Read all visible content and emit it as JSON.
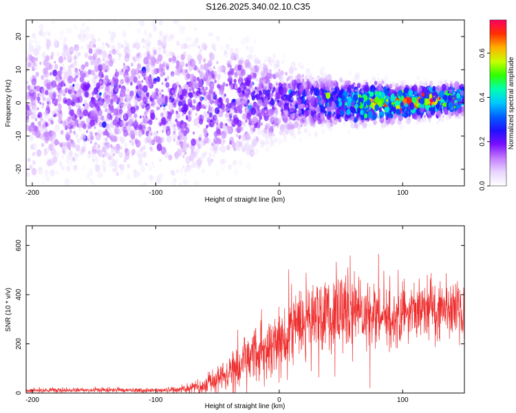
{
  "title": "S126.2025.340.02.10.C35",
  "chart_data": [
    {
      "type": "heatmap",
      "xlabel": "Height of straight line (km)",
      "ylabel": "Frequency (Hz)",
      "xlim": [
        -205,
        150
      ],
      "ylim": [
        -25,
        25
      ],
      "xticks": [
        -200,
        -100,
        0,
        100
      ],
      "yticks": [
        -20,
        -10,
        0,
        10,
        20
      ],
      "colorbar": {
        "label": "Normalized spectral amplitude",
        "range": [
          0.0,
          0.75
        ],
        "ticks": [
          0.0,
          0.2,
          0.4,
          0.6
        ],
        "colors": [
          "#ffffff",
          "#e8d6ff",
          "#c47cff",
          "#7a10ff",
          "#2010ff",
          "#0060ff",
          "#00c8ff",
          "#00ffb0",
          "#30ff00",
          "#c8ff00",
          "#ffb000",
          "#ff3000",
          "#ff0060"
        ]
      },
      "description_profile": {
        "x": [
          -200,
          -150,
          -100,
          -50,
          0,
          25,
          50,
          75,
          100,
          125,
          150
        ],
        "center_hz": [
          0,
          0,
          0,
          0,
          1,
          0.5,
          0,
          0,
          0,
          0.5,
          1.5
        ],
        "halfwidth_hz": [
          25,
          25,
          25,
          22,
          12,
          9,
          7,
          6,
          5,
          5,
          5
        ],
        "peak_amplitude": [
          0.15,
          0.16,
          0.17,
          0.18,
          0.2,
          0.26,
          0.35,
          0.55,
          0.62,
          0.55,
          0.35
        ]
      }
    },
    {
      "type": "line",
      "xlabel": "Height of straight line (km)",
      "ylabel": "SNR (10 * v/v)",
      "xlim": [
        -205,
        150
      ],
      "ylim": [
        0,
        680
      ],
      "xticks": [
        -200,
        -100,
        0,
        100
      ],
      "yticks": [
        0,
        200,
        400,
        600
      ],
      "color": "#ee2d2d",
      "envelope": {
        "x": [
          -205,
          -150,
          -100,
          -80,
          -60,
          -40,
          -20,
          0,
          20,
          40,
          60,
          80,
          100,
          120,
          150
        ],
        "mean": [
          10,
          12,
          12,
          14,
          30,
          90,
          160,
          220,
          290,
          330,
          340,
          310,
          320,
          350,
          320
        ],
        "spread": [
          6,
          7,
          7,
          9,
          25,
          55,
          80,
          100,
          110,
          120,
          110,
          90,
          80,
          80,
          90
        ]
      }
    }
  ]
}
